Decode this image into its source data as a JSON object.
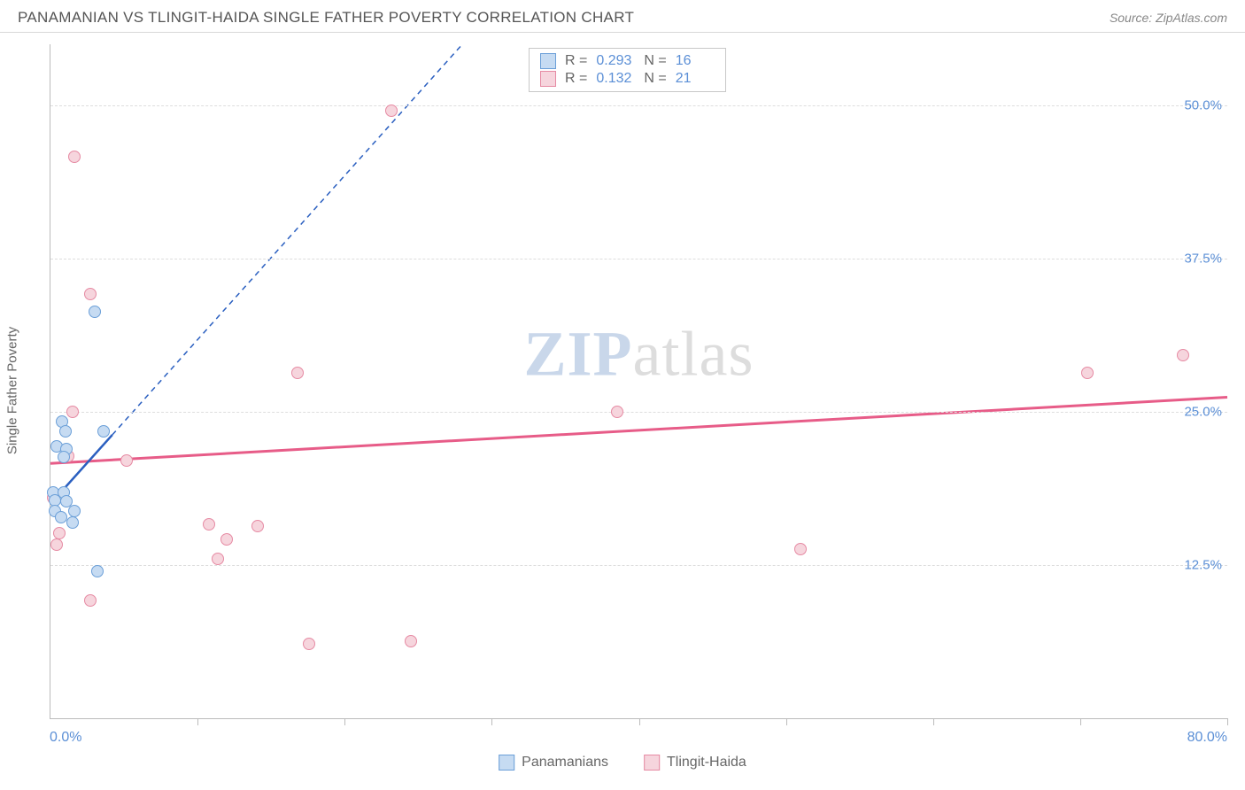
{
  "header": {
    "title": "PANAMANIAN VS TLINGIT-HAIDA SINGLE FATHER POVERTY CORRELATION CHART",
    "source": "Source: ZipAtlas.com"
  },
  "chart": {
    "type": "scatter",
    "ylabel": "Single Father Poverty",
    "xlim": [
      0,
      80
    ],
    "ylim": [
      0,
      55
    ],
    "yticks": [
      12.5,
      25.0,
      37.5,
      50.0
    ],
    "ytick_labels": [
      "12.5%",
      "25.0%",
      "37.5%",
      "50.0%"
    ],
    "xticks": [
      10,
      20,
      30,
      40,
      50,
      60,
      70,
      80
    ],
    "xlabel_min": "0.0%",
    "xlabel_max": "80.0%",
    "background_color": "#ffffff",
    "grid_color": "#dddddd",
    "tick_label_color": "#5b8fd6",
    "axis_label_color": "#666666",
    "marker_radius": 7,
    "series": {
      "a": {
        "label": "Panamanians",
        "fill_color": "#c6dbf2",
        "stroke_color": "#6b9fd8",
        "line_color": "#2a5fc0",
        "line_dash": "6,5",
        "line_width": 2,
        "r_label": "R =",
        "r_value": "0.293",
        "n_label": "N =",
        "n_value": "16",
        "trend": {
          "x1": 0,
          "y1": 17.5,
          "x2": 28,
          "y2": 55
        },
        "trend_solid_xmax": 4.2,
        "points": [
          {
            "x": 3.0,
            "y": 33.2
          },
          {
            "x": 0.8,
            "y": 24.2
          },
          {
            "x": 1.0,
            "y": 23.4
          },
          {
            "x": 3.6,
            "y": 23.4
          },
          {
            "x": 0.4,
            "y": 22.2
          },
          {
            "x": 1.1,
            "y": 22.0
          },
          {
            "x": 0.9,
            "y": 21.3
          },
          {
            "x": 0.2,
            "y": 18.4
          },
          {
            "x": 0.9,
            "y": 18.4
          },
          {
            "x": 0.3,
            "y": 17.8
          },
          {
            "x": 1.1,
            "y": 17.7
          },
          {
            "x": 0.3,
            "y": 16.9
          },
          {
            "x": 1.6,
            "y": 16.9
          },
          {
            "x": 0.7,
            "y": 16.4
          },
          {
            "x": 1.5,
            "y": 16.0
          },
          {
            "x": 3.2,
            "y": 12.0
          }
        ]
      },
      "b": {
        "label": "Tlingit-Haida",
        "fill_color": "#f6d5dd",
        "stroke_color": "#e68aa3",
        "line_color": "#e75c88",
        "line_dash": "none",
        "line_width": 3,
        "r_label": "R =",
        "r_value": "0.132",
        "n_label": "N =",
        "n_value": "21",
        "trend": {
          "x1": 0,
          "y1": 20.8,
          "x2": 80,
          "y2": 26.2
        },
        "points": [
          {
            "x": 23.2,
            "y": 49.6
          },
          {
            "x": 1.6,
            "y": 45.8
          },
          {
            "x": 2.7,
            "y": 34.6
          },
          {
            "x": 77.0,
            "y": 29.6
          },
          {
            "x": 16.8,
            "y": 28.2
          },
          {
            "x": 70.5,
            "y": 28.2
          },
          {
            "x": 1.5,
            "y": 25.0
          },
          {
            "x": 38.5,
            "y": 25.0
          },
          {
            "x": 1.2,
            "y": 21.4
          },
          {
            "x": 5.2,
            "y": 21.0
          },
          {
            "x": 10.8,
            "y": 15.8
          },
          {
            "x": 14.1,
            "y": 15.7
          },
          {
            "x": 0.6,
            "y": 15.1
          },
          {
            "x": 12.0,
            "y": 14.6
          },
          {
            "x": 0.4,
            "y": 14.2
          },
          {
            "x": 51.0,
            "y": 13.8
          },
          {
            "x": 11.4,
            "y": 13.0
          },
          {
            "x": 2.7,
            "y": 9.6
          },
          {
            "x": 17.6,
            "y": 6.1
          },
          {
            "x": 24.5,
            "y": 6.3
          },
          {
            "x": 0.2,
            "y": 18.0
          }
        ]
      }
    }
  },
  "watermark": {
    "part1": "ZIP",
    "part2": "atlas"
  }
}
